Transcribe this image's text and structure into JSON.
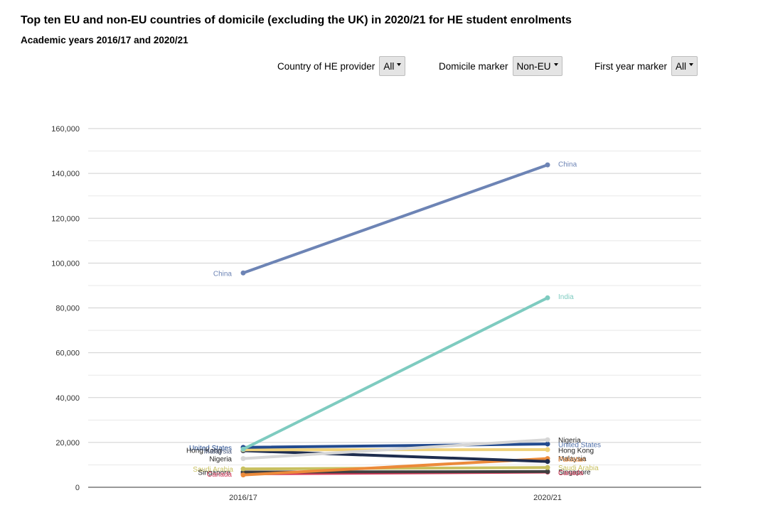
{
  "title": "Top ten EU and non-EU countries of domicile (excluding the UK) in 2020/21 for HE student enrolments",
  "subtitle": "Academic years 2016/17 and 2020/21",
  "filters": {
    "provider": {
      "label": "Country of HE provider",
      "value": "All"
    },
    "domicile": {
      "label": "Domicile marker",
      "value": "Non-EU"
    },
    "first_year": {
      "label": "First year marker",
      "value": "All"
    }
  },
  "chart_data": {
    "type": "line",
    "title": "Top ten EU and non-EU countries of domicile (excluding the UK) in 2020/21 for HE student enrolments",
    "subtitle": "Academic years 2016/17 and 2020/21",
    "xlabel": "",
    "ylabel": "",
    "categories": [
      "2016/17",
      "2020/21"
    ],
    "ylim": [
      0,
      160000
    ],
    "yticks": [
      0,
      20000,
      40000,
      60000,
      80000,
      100000,
      120000,
      140000,
      160000
    ],
    "ytick_labels": [
      "0",
      "20,000",
      "40,000",
      "60,000",
      "80,000",
      "100,000",
      "120,000",
      "140,000",
      "160,000"
    ],
    "grid": true,
    "legend": "none",
    "series": [
      {
        "name": "China",
        "values": [
          95600,
          143800
        ],
        "color": "#6d84b5"
      },
      {
        "name": "India",
        "values": [
          17000,
          84500
        ],
        "color": "#7ecbc0"
      },
      {
        "name": "Nigeria",
        "values": [
          12800,
          21200
        ],
        "color": "#d6d6d6"
      },
      {
        "name": "United States",
        "values": [
          17800,
          19300
        ],
        "color": "#234b8f"
      },
      {
        "name": "Hong Kong",
        "values": [
          16700,
          16800
        ],
        "color": "#f0d27a"
      },
      {
        "name": "Malaysia",
        "values": [
          16300,
          11500
        ],
        "color": "#1e2d4f"
      },
      {
        "name": "Pakistan",
        "values": [
          5500,
          12800
        ],
        "color": "#ec8a3a"
      },
      {
        "name": "Saudi Arabia",
        "values": [
          8200,
          8800
        ],
        "color": "#c8c060"
      },
      {
        "name": "Singapore",
        "values": [
          6800,
          7000
        ],
        "color": "#404040"
      },
      {
        "name": "Canada",
        "values": [
          6000,
          6800
        ],
        "color": "#d63a5a"
      }
    ],
    "labels_left": [
      {
        "text": "China",
        "color": "#6d84b5"
      },
      {
        "text": "United States",
        "color": "#234b8f"
      },
      {
        "text": "Hong Kong",
        "color": "#222222"
      },
      {
        "text": "Malaysia",
        "color": "#4d5d80"
      },
      {
        "text": "Nigeria",
        "color": "#222222"
      },
      {
        "text": "Saudi Arabia",
        "color": "#c8c060"
      },
      {
        "text": "Singapore",
        "color": "#222222"
      },
      {
        "text": "Canada",
        "color": "#d63a5a"
      }
    ],
    "labels_right": [
      {
        "text": "China",
        "color": "#6d84b5"
      },
      {
        "text": "India",
        "color": "#7ecbc0"
      },
      {
        "text": "Nigeria",
        "color": "#222222"
      },
      {
        "text": "United States",
        "color": "#4d6ea8"
      },
      {
        "text": "Hong Kong",
        "color": "#222222"
      },
      {
        "text": "Malaysia",
        "color": "#222222"
      },
      {
        "text": "Pakistan",
        "color": "#ec8a3a"
      },
      {
        "text": "Saudi Arabia",
        "color": "#c8c060"
      },
      {
        "text": "Singapore",
        "color": "#222222"
      },
      {
        "text": "Canada",
        "color": "#d63a5a"
      }
    ]
  }
}
